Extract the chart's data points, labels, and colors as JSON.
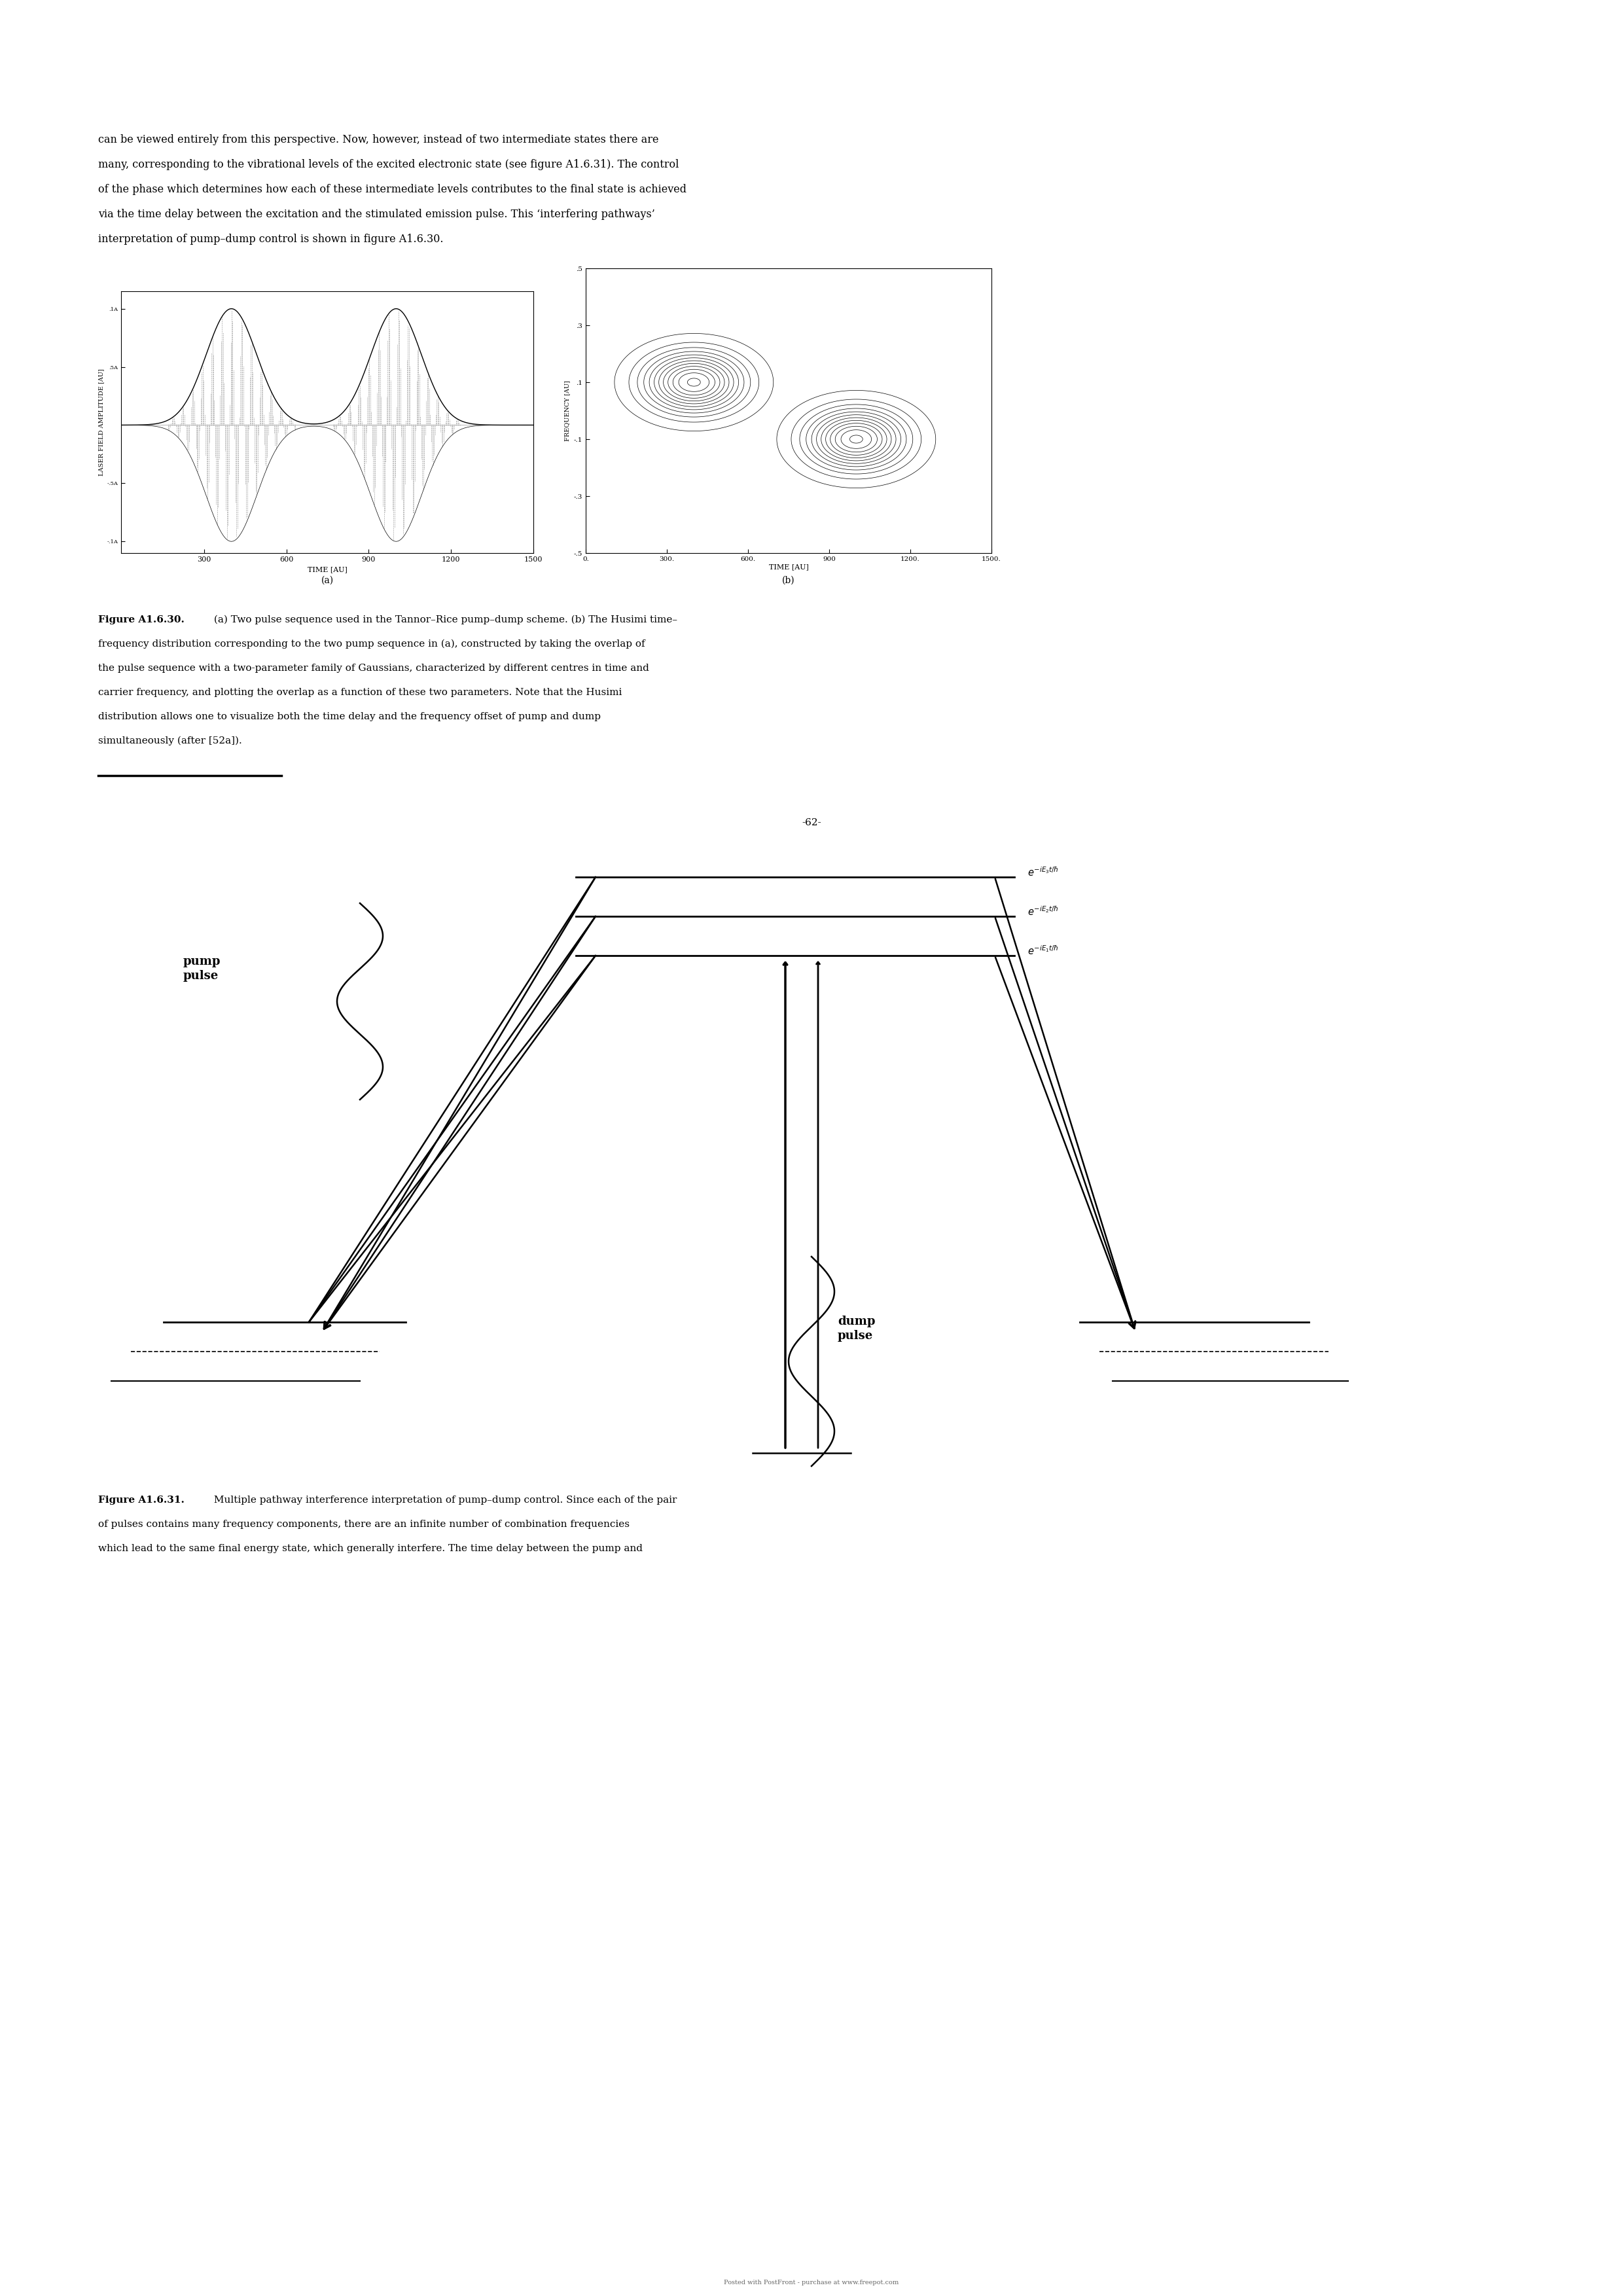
{
  "page_width": 24.8,
  "page_height": 35.08,
  "bg_color": "#ffffff",
  "top_text_line1": "can be viewed entirely from this perspective. Now, however, instead of two intermediate states there are",
  "top_text_line2": "many, corresponding to the vibrational levels of the excited electronic state (see figure A1.6.31). The control",
  "top_text_line3": "of the phase which determines how each of these intermediate levels contributes to the final state is achieved",
  "top_text_line4": "via the time delay between the excitation and the stimulated emission pulse. This ‘interfering pathways’",
  "top_text_line5": "interpretation of pump–dump control is shown in figure A1.6.30.",
  "cap1_bold": "Figure A1.6.30.",
  "cap1_rest": " (a) Two pulse sequence used in the Tannor–Rice pump–dump scheme. (b) The Husimi time–",
  "cap1_line2": "frequency distribution corresponding to the two pump sequence in (a), constructed by taking the overlap of",
  "cap1_line3": "the pulse sequence with a two-parameter family of Gaussians, characterized by different centres in time and",
  "cap1_line4": "carrier frequency, and plotting the overlap as a function of these two parameters. Note that the Husimi",
  "cap1_line5": "distribution allows one to visualize both the time delay and the frequency offset of pump and dump",
  "cap1_line6": "simultaneously (after [52a]).",
  "page_number": "-62-",
  "cap2_bold": "Figure A1.6.31.",
  "cap2_rest": " Multiple pathway interference interpretation of pump–dump control. Since each of the pair",
  "cap2_line2": "of pulses contains many frequency components, there are an infinite number of combination frequencies",
  "cap2_line3": "which lead to the same final energy state, which generally interfere. The time delay between the pump and",
  "footer_text": "Posted with PostFront - purchase at www.freepot.com"
}
